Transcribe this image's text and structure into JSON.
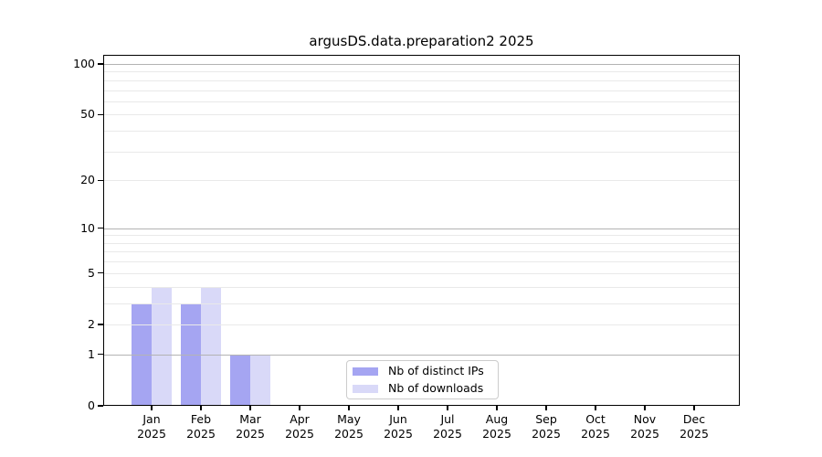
{
  "chart_data": {
    "type": "bar",
    "title": "argusDS.data.preparation2 2025",
    "xlabel": "",
    "ylabel": "",
    "categories": [
      "Jan",
      "Feb",
      "Mar",
      "Apr",
      "May",
      "Jun",
      "Jul",
      "Aug",
      "Sep",
      "Oct",
      "Nov",
      "Dec"
    ],
    "x_tick_year": "2025",
    "series": [
      {
        "name": "Nb of distinct IPs",
        "color": "#a5a5f2",
        "values": [
          3,
          3,
          1,
          0,
          0,
          0,
          0,
          0,
          0,
          0,
          0,
          0
        ]
      },
      {
        "name": "Nb of downloads",
        "color": "#d9d9f8",
        "values": [
          4,
          4,
          1,
          0,
          0,
          0,
          0,
          0,
          0,
          0,
          0,
          0
        ]
      }
    ],
    "yscale": "log1p",
    "ylim": [
      0,
      110
    ],
    "yticks": [
      0,
      1,
      2,
      5,
      10,
      20,
      50,
      100
    ],
    "grid": {
      "on": true,
      "major_values": [
        1,
        10,
        100
      ],
      "minor_values": [
        2,
        3,
        4,
        5,
        6,
        7,
        8,
        9,
        20,
        30,
        40,
        50,
        60,
        70,
        80,
        90
      ],
      "major_color": "#b3b3b3",
      "minor_color": "#e9e9e9"
    },
    "legend": {
      "position": "lower center",
      "entries": [
        "Nb of distinct IPs",
        "Nb of downloads"
      ]
    },
    "text_color": "#000000",
    "background": "#ffffff"
  }
}
